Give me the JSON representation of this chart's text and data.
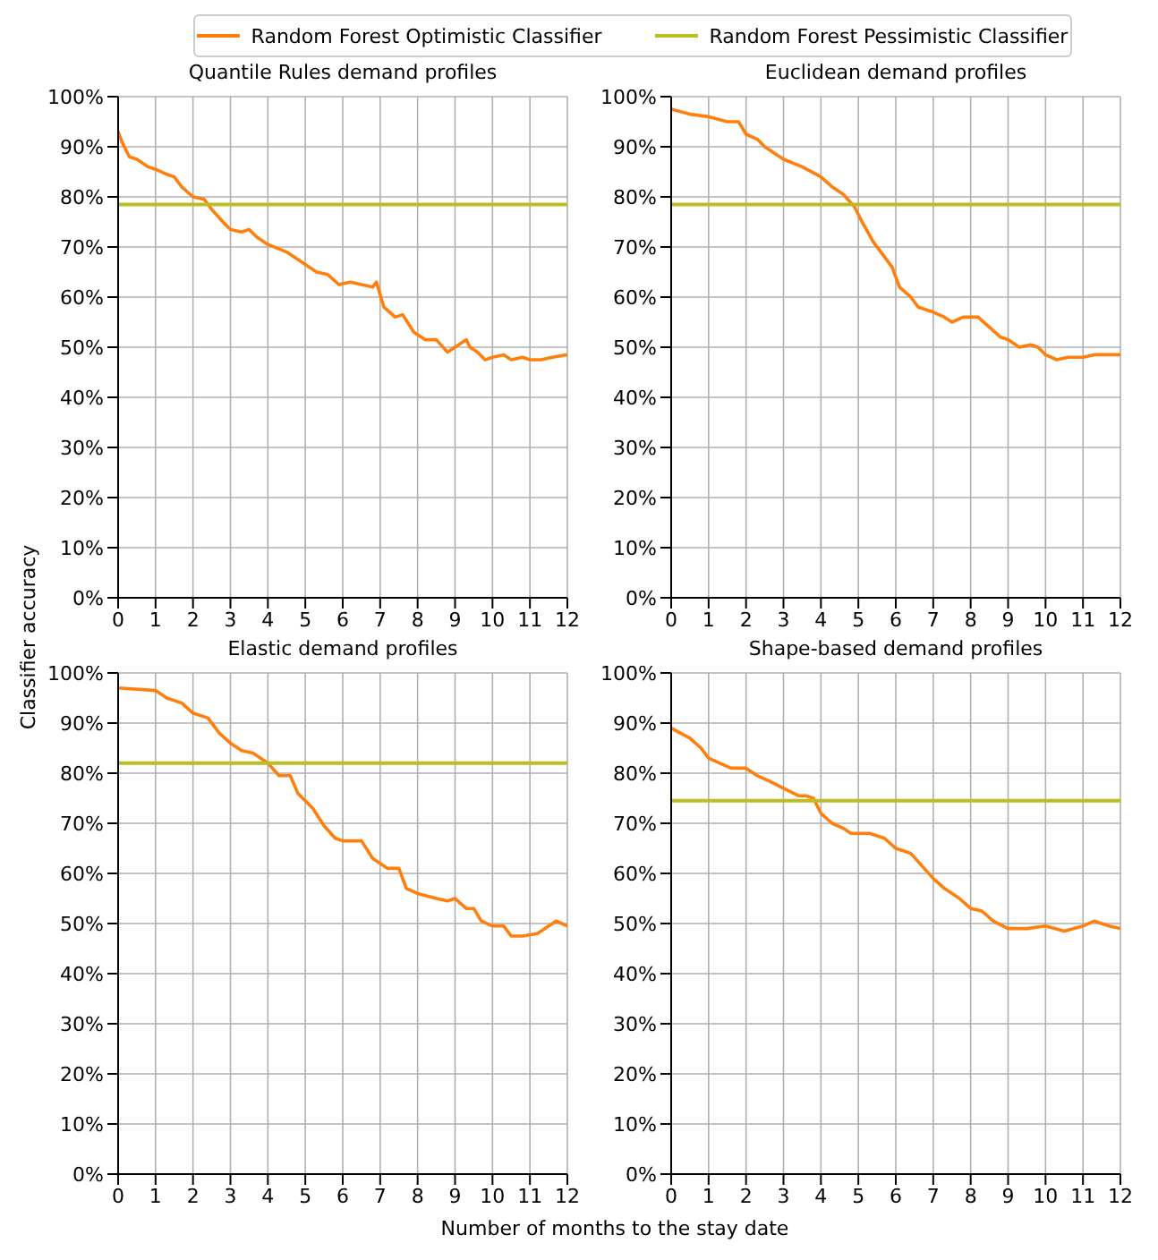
{
  "chart_data": [
    {
      "type": "line",
      "title": "Quantile Rules demand profiles",
      "ylabel": "Classifier accuracy",
      "legend": "top",
      "grid": true,
      "xlim": [
        0,
        12
      ],
      "xticks": [
        0,
        1,
        2,
        3,
        4,
        5,
        6,
        7,
        8,
        9,
        10,
        11,
        12
      ],
      "ylim": [
        0,
        100
      ],
      "yticks": [
        {
          "value": 0,
          "label": "0%"
        },
        {
          "value": 10,
          "label": "10%"
        },
        {
          "value": 20,
          "label": "20%"
        },
        {
          "value": 30,
          "label": "30%"
        },
        {
          "value": 40,
          "label": "40%"
        },
        {
          "value": 50,
          "label": "50%"
        },
        {
          "value": 60,
          "label": "60%"
        },
        {
          "value": 70,
          "label": "70%"
        },
        {
          "value": 80,
          "label": "80%"
        },
        {
          "value": 90,
          "label": "90%"
        },
        {
          "value": 100,
          "label": "100%"
        }
      ],
      "series": [
        {
          "name": "Random Forest Optimistic Classifier",
          "color": "#ff7f0e",
          "x": [
            0,
            0.1,
            0.3,
            0.5,
            0.8,
            1,
            1.3,
            1.5,
            1.7,
            2,
            2.3,
            2.5,
            2.8,
            3,
            3.3,
            3.5,
            3.7,
            4,
            4.5,
            5,
            5.3,
            5.6,
            5.9,
            6.2,
            6.5,
            6.8,
            6.9,
            7.1,
            7.4,
            7.6,
            7.9,
            8.2,
            8.5,
            8.8,
            9,
            9.3,
            9.4,
            9.6,
            9.8,
            10,
            10.3,
            10.5,
            10.8,
            11,
            11.3,
            11.6,
            12
          ],
          "values": [
            93,
            91,
            88,
            87.5,
            86,
            85.5,
            84.5,
            84,
            82,
            80,
            79.5,
            77.5,
            75,
            73.5,
            73,
            73.5,
            72,
            70.5,
            69,
            66.5,
            65,
            64.5,
            62.5,
            63,
            62.5,
            62,
            63,
            58,
            56,
            56.5,
            53,
            51.5,
            51.5,
            49,
            50,
            51.5,
            50,
            49,
            47.5,
            48,
            48.5,
            47.5,
            48,
            47.5,
            47.5,
            48,
            48.5
          ]
        },
        {
          "name": "Random Forest Pessimistic Classifier",
          "color": "#bcbd22",
          "x": [
            0,
            12
          ],
          "values": [
            78.5,
            78.5
          ]
        }
      ]
    },
    {
      "type": "line",
      "title": "Euclidean demand profiles",
      "grid": true,
      "xlim": [
        0,
        12
      ],
      "xticks": [
        0,
        1,
        2,
        3,
        4,
        5,
        6,
        7,
        8,
        9,
        10,
        11,
        12
      ],
      "ylim": [
        0,
        100
      ],
      "yticks": [
        {
          "value": 0,
          "label": "0%"
        },
        {
          "value": 10,
          "label": "10%"
        },
        {
          "value": 20,
          "label": "20%"
        },
        {
          "value": 30,
          "label": "30%"
        },
        {
          "value": 40,
          "label": "40%"
        },
        {
          "value": 50,
          "label": "50%"
        },
        {
          "value": 60,
          "label": "60%"
        },
        {
          "value": 70,
          "label": "70%"
        },
        {
          "value": 80,
          "label": "80%"
        },
        {
          "value": 90,
          "label": "90%"
        },
        {
          "value": 100,
          "label": "100%"
        }
      ],
      "series": [
        {
          "color": "#ff7f0e",
          "x": [
            0,
            0.5,
            1,
            1.5,
            1.8,
            2,
            2.3,
            2.5,
            3,
            3.5,
            4,
            4.3,
            4.6,
            4.9,
            5.1,
            5.4,
            5.7,
            5.9,
            6.1,
            6.4,
            6.6,
            7,
            7.3,
            7.5,
            7.8,
            8.2,
            8.5,
            8.8,
            9,
            9.3,
            9.6,
            9.8,
            10,
            10.3,
            10.6,
            11,
            11.3,
            11.6,
            12
          ],
          "values": [
            97.5,
            96.5,
            96,
            95,
            95,
            92.5,
            91.5,
            90,
            87.5,
            86,
            84,
            82,
            80.5,
            78,
            75,
            71,
            68,
            66,
            62,
            60,
            58,
            57,
            56,
            55,
            56,
            56,
            54,
            52,
            51.5,
            50,
            50.5,
            50,
            48.5,
            47.5,
            48,
            48,
            48.5,
            48.5,
            48.5
          ]
        },
        {
          "color": "#bcbd22",
          "x": [
            0,
            12
          ],
          "values": [
            78.5,
            78.5
          ]
        }
      ]
    },
    {
      "type": "line",
      "title": "Elastic demand profiles",
      "xlabel": "Number of months to the stay date",
      "grid": true,
      "xlim": [
        0,
        12
      ],
      "xticks": [
        0,
        1,
        2,
        3,
        4,
        5,
        6,
        7,
        8,
        9,
        10,
        11,
        12
      ],
      "ylim": [
        0,
        100
      ],
      "yticks": [
        {
          "value": 0,
          "label": "0%"
        },
        {
          "value": 10,
          "label": "10%"
        },
        {
          "value": 20,
          "label": "20%"
        },
        {
          "value": 30,
          "label": "30%"
        },
        {
          "value": 40,
          "label": "40%"
        },
        {
          "value": 50,
          "label": "50%"
        },
        {
          "value": 60,
          "label": "60%"
        },
        {
          "value": 70,
          "label": "70%"
        },
        {
          "value": 80,
          "label": "80%"
        },
        {
          "value": 90,
          "label": "90%"
        },
        {
          "value": 100,
          "label": "100%"
        }
      ],
      "series": [
        {
          "color": "#ff7f0e",
          "x": [
            0,
            1,
            1.3,
            1.7,
            2,
            2.4,
            2.7,
            3,
            3.3,
            3.6,
            4,
            4.3,
            4.6,
            4.8,
            5.2,
            5.5,
            5.8,
            6,
            6.5,
            6.8,
            7.2,
            7.5,
            7.7,
            8,
            8.5,
            8.8,
            9,
            9.3,
            9.5,
            9.7,
            10,
            10.3,
            10.5,
            10.8,
            11.2,
            11.5,
            11.7,
            12
          ],
          "values": [
            97,
            96.5,
            95,
            94,
            92,
            91,
            88,
            86,
            84.5,
            84,
            82,
            79.5,
            79.5,
            76,
            73,
            69.5,
            67,
            66.5,
            66.5,
            63,
            61,
            61,
            57,
            56,
            55,
            54.5,
            55,
            53,
            53,
            50.5,
            49.5,
            49.5,
            47.5,
            47.5,
            48,
            49.5,
            50.5,
            49.5
          ]
        },
        {
          "color": "#bcbd22",
          "x": [
            0,
            12
          ],
          "values": [
            82,
            82
          ]
        }
      ]
    },
    {
      "type": "line",
      "title": "Shape-based demand profiles",
      "grid": true,
      "xlim": [
        0,
        12
      ],
      "xticks": [
        0,
        1,
        2,
        3,
        4,
        5,
        6,
        7,
        8,
        9,
        10,
        11,
        12
      ],
      "ylim": [
        0,
        100
      ],
      "yticks": [
        {
          "value": 0,
          "label": "0%"
        },
        {
          "value": 10,
          "label": "10%"
        },
        {
          "value": 20,
          "label": "20%"
        },
        {
          "value": 30,
          "label": "30%"
        },
        {
          "value": 40,
          "label": "40%"
        },
        {
          "value": 50,
          "label": "50%"
        },
        {
          "value": 60,
          "label": "60%"
        },
        {
          "value": 70,
          "label": "70%"
        },
        {
          "value": 80,
          "label": "80%"
        },
        {
          "value": 90,
          "label": "90%"
        },
        {
          "value": 100,
          "label": "100%"
        }
      ],
      "series": [
        {
          "color": "#ff7f0e",
          "x": [
            0,
            0.5,
            0.8,
            1,
            1.3,
            1.6,
            2,
            2.3,
            2.6,
            3,
            3.4,
            3.6,
            3.8,
            4,
            4.3,
            4.6,
            4.8,
            5.3,
            5.7,
            6,
            6.4,
            7,
            7.3,
            7.7,
            8,
            8.3,
            8.6,
            9,
            9.5,
            10,
            10.5,
            11,
            11.3,
            11.7,
            12
          ],
          "values": [
            89,
            87,
            85,
            83,
            82,
            81,
            81,
            79.5,
            78.5,
            77,
            75.5,
            75.5,
            75,
            72,
            70,
            69,
            68,
            68,
            67,
            65,
            64,
            59,
            57,
            55,
            53,
            52.5,
            50.5,
            49,
            49,
            49.5,
            48.5,
            49.5,
            50.5,
            49.5,
            49
          ]
        },
        {
          "color": "#bcbd22",
          "x": [
            0,
            12
          ],
          "values": [
            74.5,
            74.5
          ]
        }
      ]
    }
  ]
}
